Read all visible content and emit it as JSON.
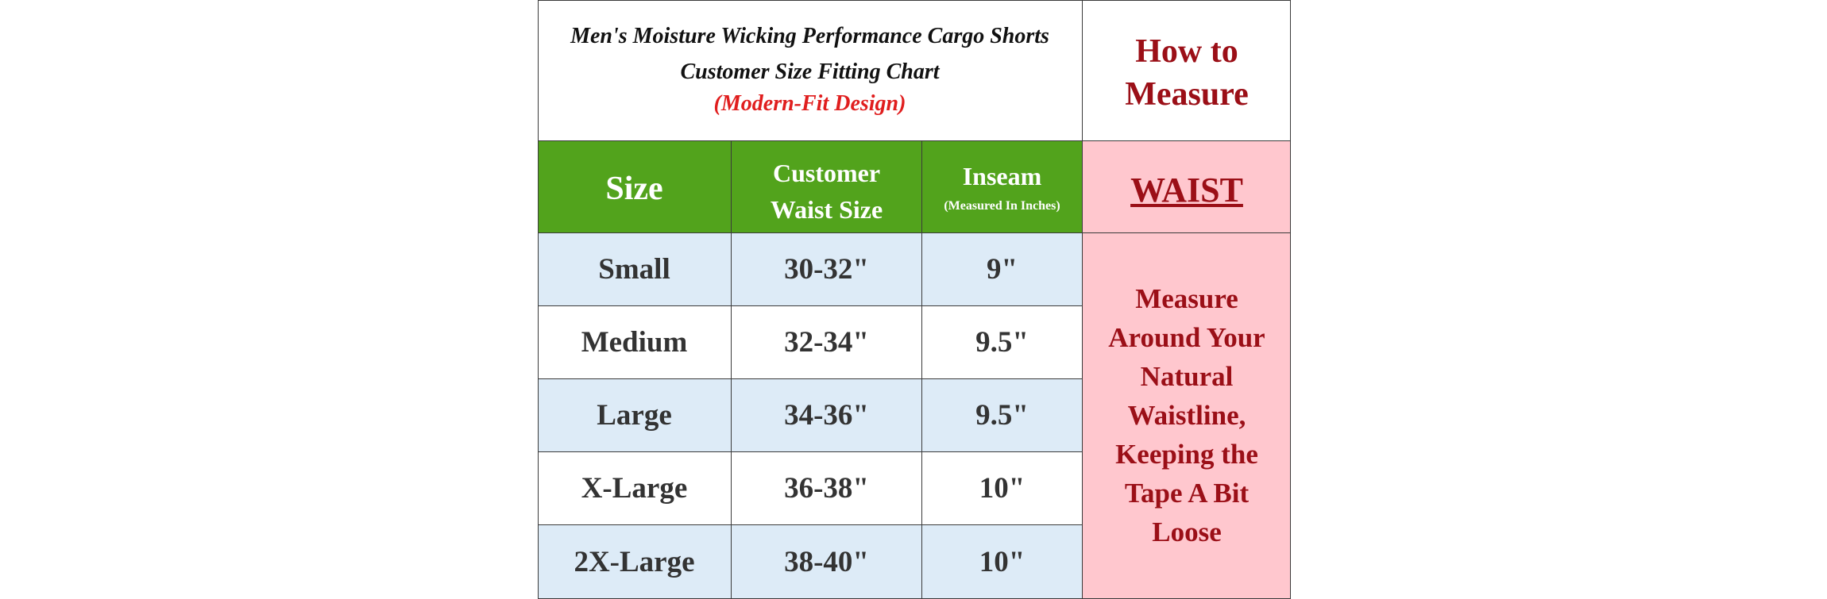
{
  "title": {
    "line1": "Men's Moisture Wicking Performance Cargo Shorts",
    "line2": "Customer Size Fitting Chart",
    "line3": "(Modern-Fit Design)"
  },
  "how_to_measure": {
    "heading": "How to Measure",
    "label": "WAIST",
    "instruction": "Measure Around Your Natural Waistline, Keeping the Tape A Bit Loose"
  },
  "table": {
    "headers": {
      "size": "Size",
      "waist_line1": "Customer",
      "waist_line2": "Waist Size",
      "inseam": "Inseam",
      "inseam_sub": "(Measured In Inches)"
    },
    "rows": [
      {
        "size": "Small",
        "waist": "30-32\"",
        "inseam": "9\""
      },
      {
        "size": "Medium",
        "waist": "32-34\"",
        "inseam": "9.5\""
      },
      {
        "size": "Large",
        "waist": "34-36\"",
        "inseam": "9.5\""
      },
      {
        "size": "X-Large",
        "waist": "36-38\"",
        "inseam": "10\""
      },
      {
        "size": "2X-Large",
        "waist": "38-40\"",
        "inseam": "10\""
      }
    ]
  },
  "colors": {
    "header_green": "#52a31c",
    "accent_red": "#9b0f17",
    "title_red": "#e01e1e",
    "pink": "#ffc7ce",
    "row_blue": "#ddebf7"
  }
}
